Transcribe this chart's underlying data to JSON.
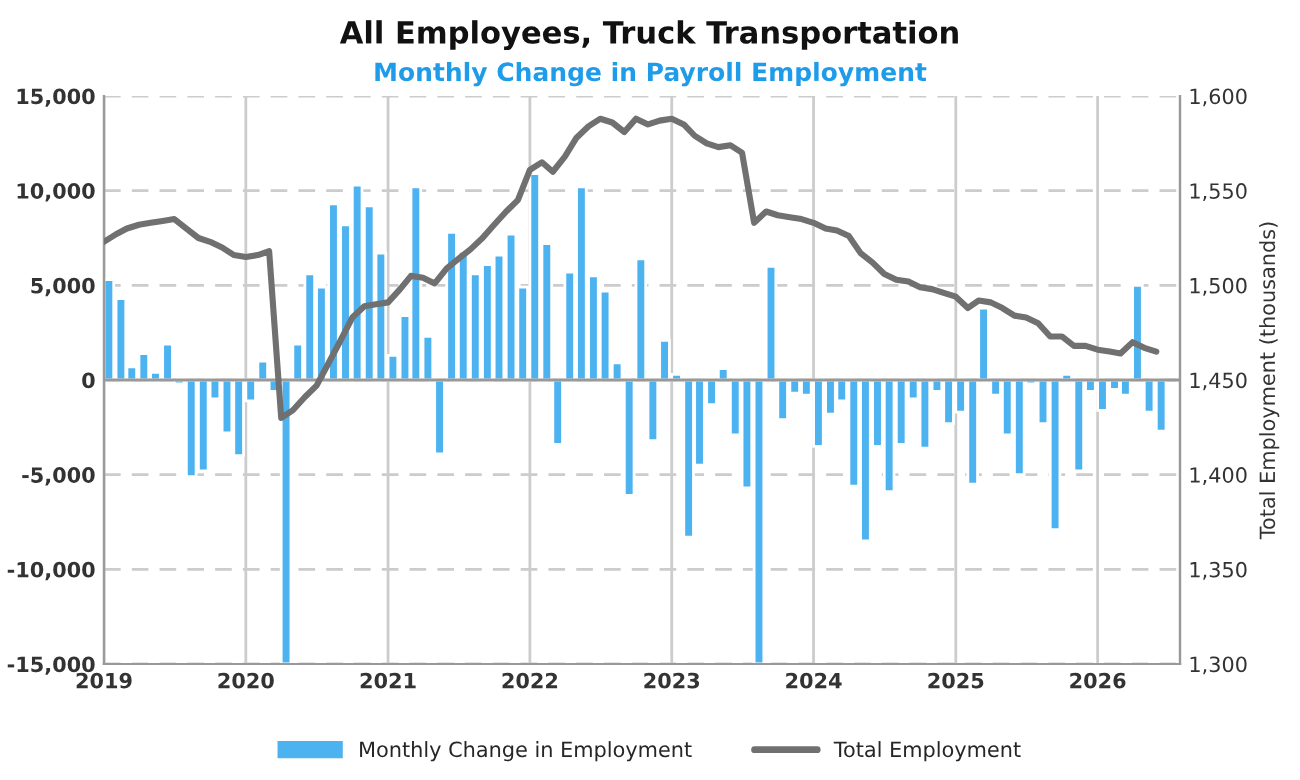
{
  "chart_data": {
    "type": "bar",
    "title": "All Employees, Truck Transportation",
    "subtitle": "Monthly Change in Payroll Employment",
    "y2label": "Total Employment (thousands)",
    "x": [
      "2019-01",
      "2019-02",
      "2019-03",
      "2019-04",
      "2019-05",
      "2019-06",
      "2019-07",
      "2019-08",
      "2019-09",
      "2019-10",
      "2019-11",
      "2019-12",
      "2020-01",
      "2020-02",
      "2020-03",
      "2020-04",
      "2020-05",
      "2020-06",
      "2020-07",
      "2020-08",
      "2020-09",
      "2020-10",
      "2020-11",
      "2020-12",
      "2021-01",
      "2021-02",
      "2021-03",
      "2021-04",
      "2021-05",
      "2021-06",
      "2021-07",
      "2021-08",
      "2021-09",
      "2021-10",
      "2021-11",
      "2021-12",
      "2022-01",
      "2022-02",
      "2022-03",
      "2022-04",
      "2022-05",
      "2022-06",
      "2022-07",
      "2022-08",
      "2022-09",
      "2022-10",
      "2022-11",
      "2022-12",
      "2023-01",
      "2023-02",
      "2023-03",
      "2023-04",
      "2023-05",
      "2023-06",
      "2023-07",
      "2023-08",
      "2023-09",
      "2023-10",
      "2023-11",
      "2023-12",
      "2024-01",
      "2024-02",
      "2024-03",
      "2024-04",
      "2024-05",
      "2024-06",
      "2024-07",
      "2024-08",
      "2024-09",
      "2024-10",
      "2024-11",
      "2024-12",
      "2025-01",
      "2025-02",
      "2025-03",
      "2025-04",
      "2025-05",
      "2025-06",
      "2025-07",
      "2025-08",
      "2025-09",
      "2025-10",
      "2025-11",
      "2025-12",
      "2026-01",
      "2026-02",
      "2026-03",
      "2026-04",
      "2026-05",
      "2026-06"
    ],
    "series": [
      {
        "name": "Monthly Change in Employment",
        "color": "#4db3f0",
        "values": [
          5300,
          4300,
          700,
          1400,
          400,
          1900,
          -200,
          -5100,
          -4800,
          -1000,
          -2800,
          -4000,
          -1100,
          1000,
          -600,
          -15000,
          1900,
          5600,
          4900,
          9300,
          8200,
          10300,
          9200,
          6700,
          1300,
          3400,
          10200,
          2300,
          -3900,
          7800,
          6800,
          5600,
          6100,
          6600,
          7700,
          4900,
          10900,
          7200,
          -3400,
          5700,
          10200,
          5500,
          4700,
          900,
          -6100,
          6400,
          -3200,
          2100,
          300,
          -8300,
          -4500,
          -1300,
          600,
          -2900,
          -5700,
          -15000,
          6000,
          -2100,
          -700,
          -800,
          -3500,
          -1800,
          -1100,
          -5600,
          -8500,
          -3500,
          -5900,
          -3400,
          -1000,
          -3600,
          -600,
          -2300,
          -1700,
          -5500,
          3800,
          -800,
          -2900,
          -5000,
          -200,
          -2300,
          -7900,
          300,
          -4800,
          -600,
          -1600,
          -500,
          -800,
          5000,
          -1700,
          -2700
        ]
      },
      {
        "name": "Total Employment",
        "type": "line",
        "axis": "y2",
        "color": "#707070",
        "values": [
          1523,
          1527,
          1530,
          1532,
          1533,
          1534,
          1535,
          1530,
          1525,
          1523,
          1520,
          1516,
          1515,
          1516,
          1518,
          1430,
          1434,
          1441,
          1447,
          1459,
          1471,
          1483,
          1489,
          1490,
          1491,
          1498,
          1505,
          1504,
          1501,
          1509,
          1514,
          1519,
          1525,
          1532,
          1539,
          1545,
          1561,
          1565,
          1560,
          1568,
          1578,
          1584,
          1588,
          1586,
          1581,
          1588,
          1585,
          1587,
          1588,
          1585,
          1579,
          1575,
          1573,
          1574,
          1570,
          1533,
          1539,
          1537,
          1536,
          1535,
          1533,
          1530,
          1529,
          1526,
          1517,
          1512,
          1506,
          1503,
          1502,
          1499,
          1498,
          1496,
          1494,
          1488,
          1492,
          1491,
          1488,
          1484,
          1483,
          1480,
          1473,
          1473,
          1468,
          1468,
          1466,
          1465,
          1464,
          1470,
          1467,
          1465
        ]
      }
    ],
    "ylim": [
      -15000,
      15000
    ],
    "yticks": [
      {
        "value": -15000,
        "label": "-15,000"
      },
      {
        "value": -10000,
        "label": "-10,000"
      },
      {
        "value": -5000,
        "label": "-5,000"
      },
      0,
      {
        "value": 5000,
        "label": "5,000"
      },
      {
        "value": 10000,
        "label": "10,000"
      },
      {
        "value": 15000,
        "label": "15,000"
      }
    ],
    "y2lim": [
      1300,
      1600
    ],
    "y2ticks": [
      {
        "value": 1300,
        "label": "1,300"
      },
      {
        "value": 1350,
        "label": "1,350"
      },
      {
        "value": 1400,
        "label": "1,400"
      },
      {
        "value": 1450,
        "label": "1,450"
      },
      {
        "value": 1500,
        "label": "1,500"
      },
      {
        "value": 1550,
        "label": "1,550"
      },
      {
        "value": 1600,
        "label": "1,600"
      }
    ],
    "xlim": [
      "2019-01",
      "2026-08"
    ],
    "xticks": [
      {
        "value": "2019-01",
        "label": "2019"
      },
      {
        "value": "2020-01",
        "label": "2020"
      },
      {
        "value": "2021-01",
        "label": "2021"
      },
      {
        "value": "2022-01",
        "label": "2022"
      },
      {
        "value": "2023-01",
        "label": "2023"
      },
      {
        "value": "2024-01",
        "label": "2024"
      },
      {
        "value": "2025-01",
        "label": "2025"
      },
      {
        "value": "2026-01",
        "label": "2026"
      }
    ],
    "grid": true,
    "legend": "bottom",
    "line_style": "solid",
    "marker": "none"
  }
}
